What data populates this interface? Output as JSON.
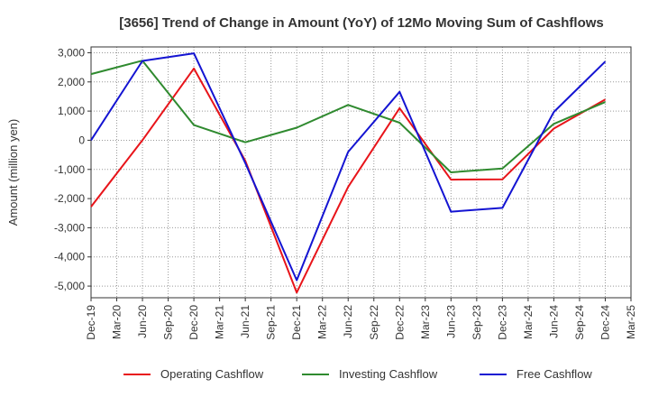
{
  "chart_data": {
    "type": "line",
    "title": "[3656]  Trend of Change in Amount (YoY) of 12Mo Moving Sum of Cashflows",
    "xlabel": "",
    "ylabel": "Amount (million yen)",
    "ylim": [
      -5400,
      3200
    ],
    "yticks": [
      3000,
      2000,
      1000,
      0,
      -1000,
      -2000,
      -3000,
      -4000,
      -5000
    ],
    "ytick_labels": [
      "3,000",
      "2,000",
      "1,000",
      "0",
      "-1,000",
      "-2,000",
      "-3,000",
      "-4,000",
      "-5,000"
    ],
    "categories": [
      "Dec-19",
      "Mar-20",
      "Jun-20",
      "Sep-20",
      "Dec-20",
      "Mar-21",
      "Jun-21",
      "Sep-21",
      "Dec-21",
      "Mar-22",
      "Jun-22",
      "Sep-22",
      "Dec-22",
      "Mar-23",
      "Jun-23",
      "Sep-23",
      "Dec-23",
      "Mar-24",
      "Jun-24",
      "Sep-24",
      "Dec-24",
      "Mar-25"
    ],
    "grid": true,
    "legend_position": "bottom",
    "series": [
      {
        "name": "Operating Cashflow",
        "color": "#e8141a",
        "values": [
          -2280,
          null,
          0,
          null,
          2460,
          null,
          -700,
          null,
          -5220,
          null,
          -1600,
          null,
          1100,
          null,
          -1350,
          null,
          -1340,
          null,
          400,
          null,
          1400,
          null
        ]
      },
      {
        "name": "Investing Cashflow",
        "color": "#2f8a2f",
        "values": [
          2270,
          null,
          2730,
          null,
          520,
          null,
          -70,
          null,
          430,
          null,
          1210,
          null,
          600,
          null,
          -1100,
          null,
          -970,
          null,
          560,
          null,
          1310,
          null
        ]
      },
      {
        "name": "Free Cashflow",
        "color": "#1414d2",
        "values": [
          0,
          null,
          2720,
          null,
          2980,
          null,
          -780,
          null,
          -4800,
          null,
          -400,
          null,
          1660,
          null,
          -2450,
          null,
          -2320,
          null,
          970,
          null,
          2700,
          null
        ]
      }
    ]
  }
}
